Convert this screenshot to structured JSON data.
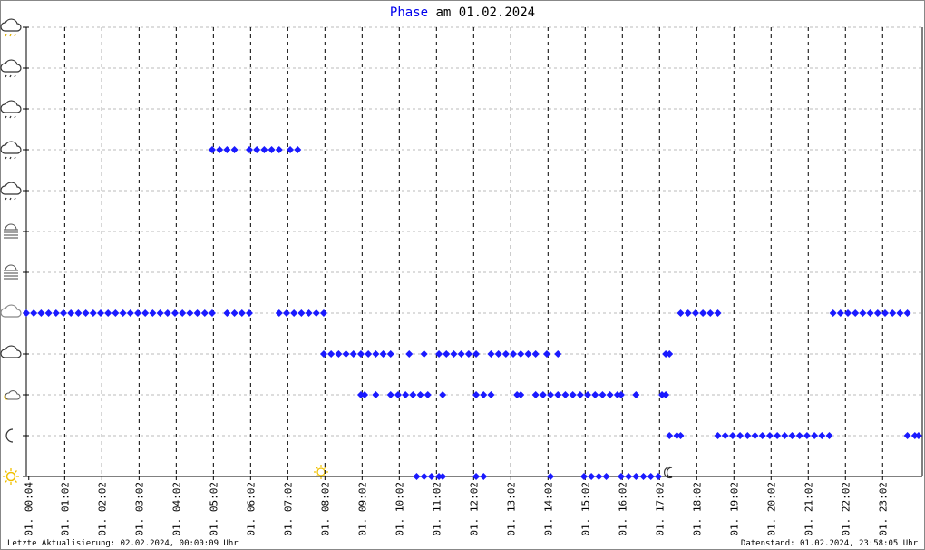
{
  "chart_data": {
    "type": "scatter",
    "title": "Phase",
    "title_suffix": "am 01.02.2024",
    "footer_left": "Letzte Aktualisierung: 02.02.2024, 00:00:09 Uhr",
    "footer_right": "Datenstand: 01.02.2024, 23:58:05 Uhr",
    "color": "#1a1aff",
    "grid": true,
    "xlim": [
      0,
      24.1
    ],
    "ylim": [
      0,
      11
    ],
    "yticks": [
      0,
      1,
      2,
      3,
      4,
      5,
      6,
      7,
      8,
      9,
      10,
      11
    ],
    "xticks": [
      {
        "value": 0.067,
        "label": "01. 00:04"
      },
      {
        "value": 1.033,
        "label": "01. 01:02"
      },
      {
        "value": 2.033,
        "label": "01. 02:02"
      },
      {
        "value": 3.033,
        "label": "01. 03:02"
      },
      {
        "value": 4.033,
        "label": "01. 04:02"
      },
      {
        "value": 5.033,
        "label": "01. 05:02"
      },
      {
        "value": 6.033,
        "label": "01. 06:02"
      },
      {
        "value": 7.033,
        "label": "01. 07:02"
      },
      {
        "value": 8.033,
        "label": "01. 08:02"
      },
      {
        "value": 9.033,
        "label": "01. 09:02"
      },
      {
        "value": 10.033,
        "label": "01. 10:02"
      },
      {
        "value": 11.033,
        "label": "01. 11:02"
      },
      {
        "value": 12.033,
        "label": "01. 12:02"
      },
      {
        "value": 13.033,
        "label": "01. 13:02"
      },
      {
        "value": 14.033,
        "label": "01. 14:02"
      },
      {
        "value": 15.033,
        "label": "01. 15:02"
      },
      {
        "value": 16.033,
        "label": "01. 16:02"
      },
      {
        "value": 17.033,
        "label": "01. 17:02"
      },
      {
        "value": 18.033,
        "label": "01. 18:02"
      },
      {
        "value": 19.033,
        "label": "01. 19:02"
      },
      {
        "value": 20.033,
        "label": "01. 20:02"
      },
      {
        "value": 21.033,
        "label": "01. 21:02"
      },
      {
        "value": 22.033,
        "label": "01. 22:02"
      },
      {
        "value": 23.033,
        "label": "01. 23:02"
      }
    ],
    "x": [
      0.0,
      0.2,
      0.4,
      0.6,
      0.8,
      1.0,
      1.2,
      1.4,
      1.6,
      1.8,
      2.0,
      2.2,
      2.4,
      2.6,
      2.8,
      3.0,
      3.2,
      3.4,
      3.6,
      3.8,
      4.0,
      4.2,
      4.4,
      4.6,
      4.8,
      5.0,
      5.4,
      5.6,
      5.8,
      6.0,
      6.8,
      7.0,
      7.2,
      7.4,
      7.6,
      7.8,
      8.0,
      17.6,
      17.8,
      18.0,
      18.2,
      18.4,
      18.6,
      21.7,
      21.9,
      22.1,
      22.3,
      22.5,
      22.7,
      22.9,
      23.1,
      23.3,
      23.5,
      23.7,
      5.0,
      5.2,
      5.4,
      5.6,
      6.0,
      6.2,
      6.4,
      6.6,
      6.8,
      7.1,
      7.3,
      8.0,
      8.2,
      8.4,
      8.6,
      8.8,
      9.0,
      9.2,
      9.4,
      9.6,
      9.8,
      10.3,
      10.7,
      11.1,
      11.3,
      11.5,
      11.7,
      11.9,
      12.1,
      12.5,
      12.7,
      12.9,
      13.1,
      13.3,
      13.5,
      13.7,
      14.0,
      14.3,
      17.2,
      17.3,
      9.0,
      9.1,
      9.4,
      9.8,
      10.0,
      10.2,
      10.4,
      10.6,
      10.8,
      11.2,
      12.1,
      12.3,
      12.5,
      13.2,
      13.3,
      13.7,
      13.9,
      14.1,
      14.3,
      14.5,
      14.7,
      14.9,
      15.1,
      15.3,
      15.5,
      15.7,
      15.9,
      16.0,
      16.4,
      17.1,
      17.2,
      17.3,
      17.5,
      17.6,
      18.6,
      18.8,
      19.0,
      19.2,
      19.4,
      19.6,
      19.8,
      20.0,
      20.2,
      20.4,
      20.6,
      20.8,
      21.0,
      21.2,
      21.4,
      21.6,
      23.7,
      23.9,
      24.0,
      10.5,
      10.7,
      10.9,
      11.1,
      11.2,
      12.1,
      12.3,
      14.1,
      15.0,
      15.2,
      15.4,
      15.6,
      16.0,
      16.2,
      16.4,
      16.6,
      16.8,
      17.0
    ],
    "values": [
      4,
      4,
      4,
      4,
      4,
      4,
      4,
      4,
      4,
      4,
      4,
      4,
      4,
      4,
      4,
      4,
      4,
      4,
      4,
      4,
      4,
      4,
      4,
      4,
      4,
      4,
      4,
      4,
      4,
      4,
      4,
      4,
      4,
      4,
      4,
      4,
      4,
      4,
      4,
      4,
      4,
      4,
      4,
      4,
      4,
      4,
      4,
      4,
      4,
      4,
      4,
      4,
      4,
      4,
      8,
      8,
      8,
      8,
      8,
      8,
      8,
      8,
      8,
      8,
      8,
      3,
      3,
      3,
      3,
      3,
      3,
      3,
      3,
      3,
      3,
      3,
      3,
      3,
      3,
      3,
      3,
      3,
      3,
      3,
      3,
      3,
      3,
      3,
      3,
      3,
      3,
      3,
      3,
      3,
      2,
      2,
      2,
      2,
      2,
      2,
      2,
      2,
      2,
      2,
      2,
      2,
      2,
      2,
      2,
      2,
      2,
      2,
      2,
      2,
      2,
      2,
      2,
      2,
      2,
      2,
      2,
      2,
      2,
      2,
      2,
      1,
      1,
      1,
      1,
      1,
      1,
      1,
      1,
      1,
      1,
      1,
      1,
      1,
      1,
      1,
      1,
      1,
      1,
      1,
      1,
      1,
      1,
      0,
      0,
      0,
      0,
      0,
      0,
      0,
      0,
      0,
      0,
      0,
      0,
      0,
      0,
      0,
      0,
      0,
      0
    ]
  }
}
